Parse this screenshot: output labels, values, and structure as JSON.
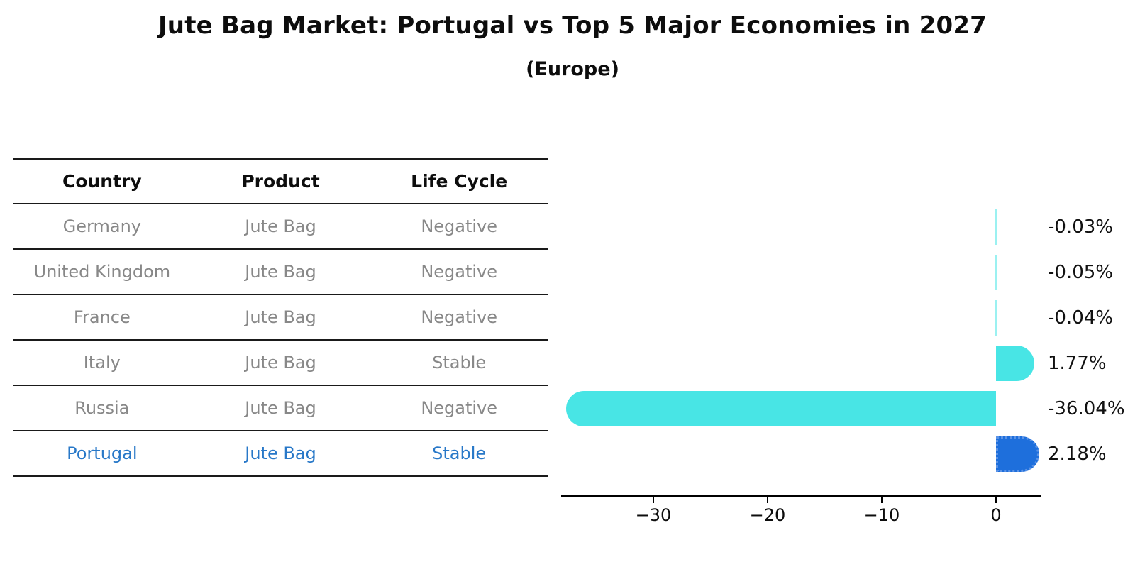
{
  "title": "Jute Bag Market: Portugal vs Top 5 Major Economies in 2027",
  "subtitle": "(Europe)",
  "table": {
    "headers": [
      "Country",
      "Product",
      "Life Cycle"
    ],
    "rows": [
      {
        "country": "Germany",
        "product": "Jute Bag",
        "life_cycle": "Negative",
        "highlight": false
      },
      {
        "country": "United Kingdom",
        "product": "Jute Bag",
        "life_cycle": "Negative",
        "highlight": false
      },
      {
        "country": "France",
        "product": "Jute Bag",
        "life_cycle": "Negative",
        "highlight": false
      },
      {
        "country": "Italy",
        "product": "Jute Bag",
        "life_cycle": "Stable",
        "highlight": false
      },
      {
        "country": "Russia",
        "product": "Jute Bag",
        "life_cycle": "Negative",
        "highlight": false
      },
      {
        "country": "Portugal",
        "product": "Jute Bag",
        "life_cycle": "Stable",
        "highlight": true
      }
    ]
  },
  "chart_data": {
    "type": "bar",
    "orientation": "horizontal",
    "categories": [
      "Germany",
      "United Kingdom",
      "France",
      "Italy",
      "Russia",
      "Portugal"
    ],
    "values": [
      -0.03,
      -0.05,
      -0.04,
      1.77,
      -36.04,
      2.18
    ],
    "value_labels": [
      "-0.03%",
      "-0.05%",
      "-0.04%",
      "1.77%",
      "-36.04%",
      "2.18%"
    ],
    "xticks": [
      -30,
      -20,
      -10,
      0
    ],
    "xtick_labels": [
      "−30",
      "−20",
      "−10",
      "0"
    ],
    "xlim": [
      -38.1,
      4.0
    ],
    "grid": false,
    "legend": false,
    "bar_color": "#48e5e5",
    "highlight_color": "#1e6fdc",
    "highlight_index": 5,
    "value_unit": "%"
  },
  "colors": {
    "row_text": "#888888",
    "highlight_text": "#2878c8",
    "header_text": "#0d0d0d",
    "axis": "#000000"
  }
}
